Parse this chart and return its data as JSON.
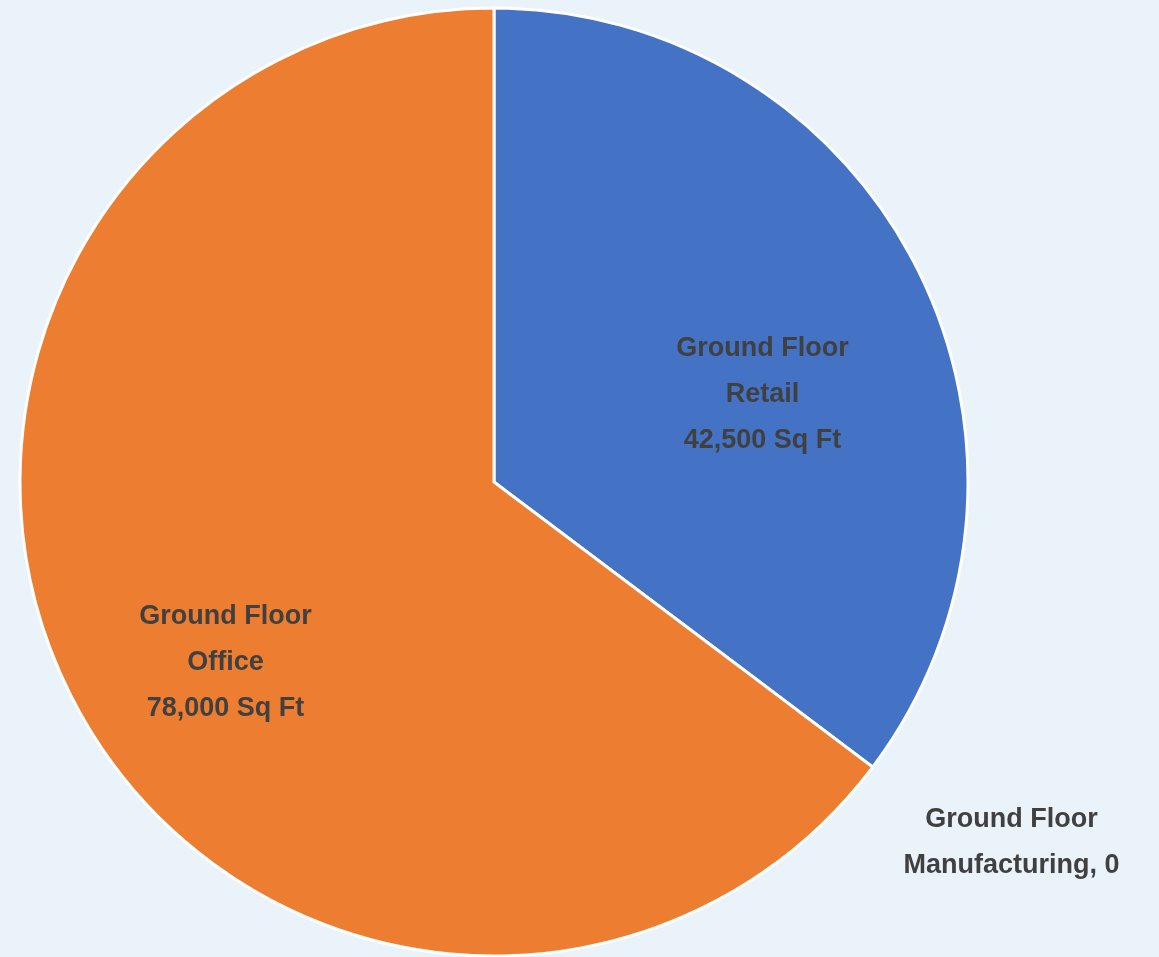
{
  "chart_data": {
    "type": "pie",
    "categories": [
      "Ground Floor Retail",
      "Ground Floor Manufacturing",
      "Ground Floor Office"
    ],
    "values": [
      42500,
      0,
      78000
    ],
    "colors": [
      "#4472c4",
      "#a5a5a5",
      "#ed7d31"
    ],
    "value_labels": [
      "42,500 Sq Ft",
      ", 0",
      "78,000 Sq Ft"
    ]
  }
}
